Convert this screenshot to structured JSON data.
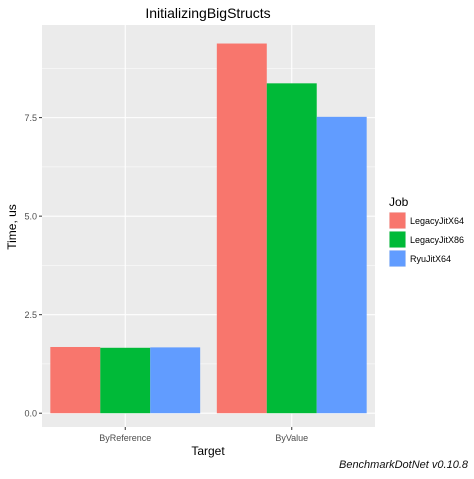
{
  "chart_data": {
    "type": "bar",
    "title": "InitializingBigStructs",
    "xlabel": "Target",
    "ylabel": "Time, us",
    "categories": [
      "ByReference",
      "ByValue"
    ],
    "series": [
      {
        "name": "LegacyJitX64",
        "values": [
          1.68,
          9.38
        ],
        "color": "#F8766D"
      },
      {
        "name": "LegacyJitX86",
        "values": [
          1.66,
          8.37
        ],
        "color": "#00BA38"
      },
      {
        "name": "RyuJitX64",
        "values": [
          1.67,
          7.52
        ],
        "color": "#619CFF"
      }
    ],
    "ylim": [
      -0.35,
      9.85
    ],
    "yticks": [
      0.0,
      2.5,
      5.0,
      7.5
    ],
    "ytick_labels": [
      "0.0",
      "2.5",
      "5.0",
      "7.5"
    ],
    "legend": {
      "title": "Job",
      "position": "right"
    },
    "grid": true,
    "panel_background": "#EBEBEB"
  },
  "footer": "BenchmarkDotNet v0.10.8"
}
